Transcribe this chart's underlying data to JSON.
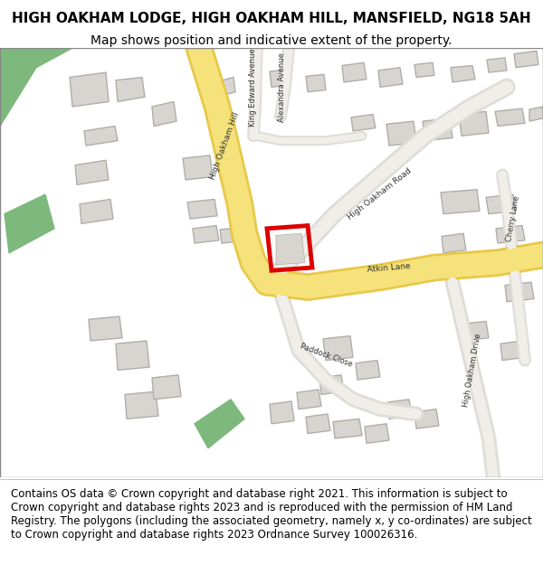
{
  "title_line1": "HIGH OAKHAM LODGE, HIGH OAKHAM HILL, MANSFIELD, NG18 5AH",
  "title_line2": "Map shows position and indicative extent of the property.",
  "footer_text": "Contains OS data © Crown copyright and database right 2021. This information is subject to Crown copyright and database rights 2023 and is reproduced with the permission of HM Land Registry. The polygons (including the associated geometry, namely x, y co-ordinates) are subject to Crown copyright and database rights 2023 Ordnance Survey 100026316.",
  "bg_color": "#f5f5f0",
  "map_bg": "#f2f0ed",
  "road_yellow": "#f5e27a",
  "road_yellow_border": "#e8c84a",
  "road_white": "#ffffff",
  "road_border": "#c8c8c8",
  "building_fill": "#d8d5d0",
  "building_stroke": "#b0aeaa",
  "green_fill": "#7db87d",
  "red_outline": "#dd0000",
  "title_fontsize": 11,
  "subtitle_fontsize": 10,
  "footer_fontsize": 8.5,
  "label_fontsize": 6.5,
  "label_small_fontsize": 6.0
}
